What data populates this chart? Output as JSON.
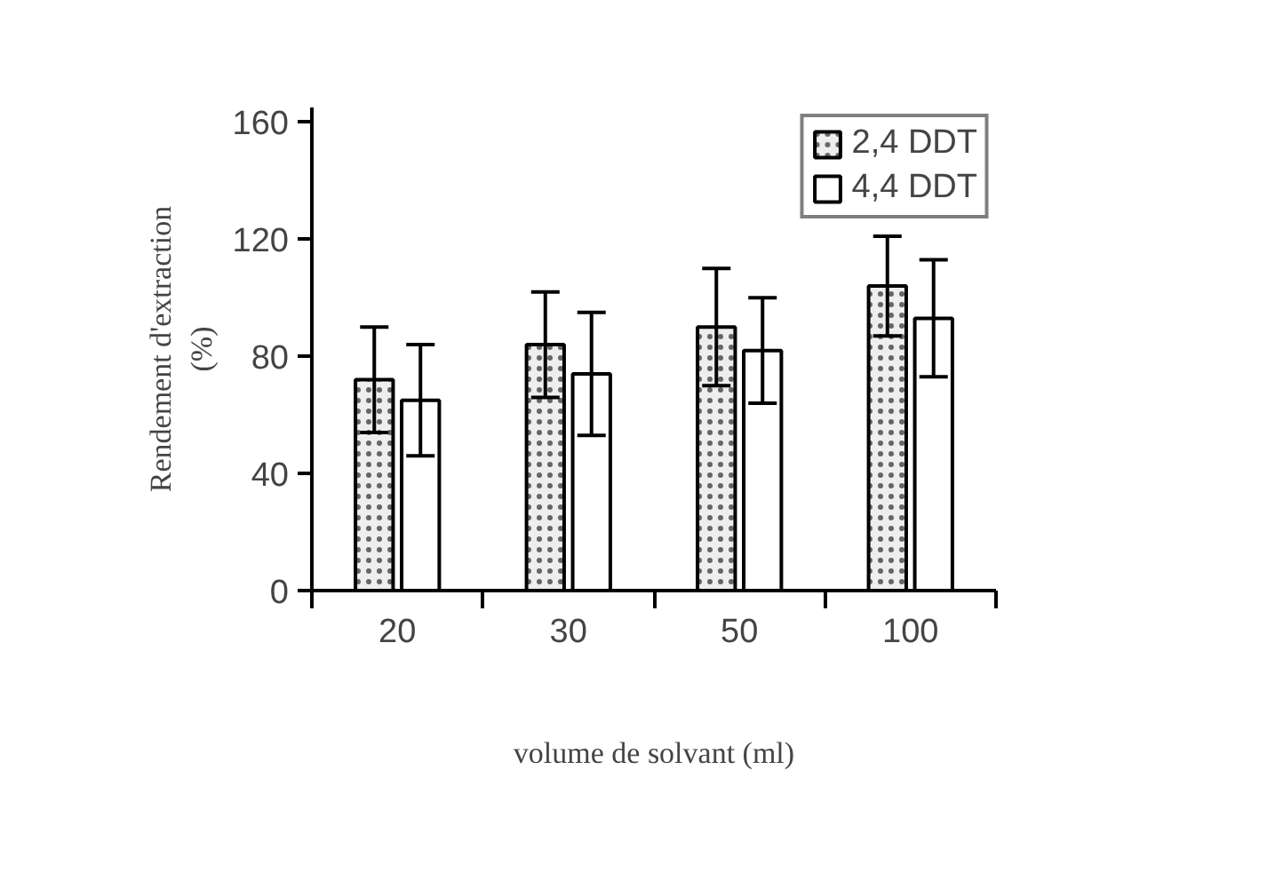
{
  "chart_data": {
    "type": "bar",
    "xlabel": "volume de solvant (ml)",
    "ylabel": "Rendement d'extraction\n(%)",
    "categories": [
      "20",
      "30",
      "50",
      "100"
    ],
    "series": [
      {
        "name": "2,4 DDT",
        "color": "#eeeeee",
        "values": [
          72,
          84,
          90,
          104
        ],
        "errors": [
          18,
          18,
          20,
          17
        ]
      },
      {
        "name": "4,4 DDT",
        "color": "#ffffff",
        "values": [
          65,
          74,
          82,
          93
        ],
        "errors": [
          19,
          21,
          18,
          20
        ]
      }
    ],
    "ylim": [
      0,
      165
    ],
    "yticks": [
      0,
      40,
      80,
      120,
      160
    ],
    "grid": false,
    "legend": "top right"
  }
}
